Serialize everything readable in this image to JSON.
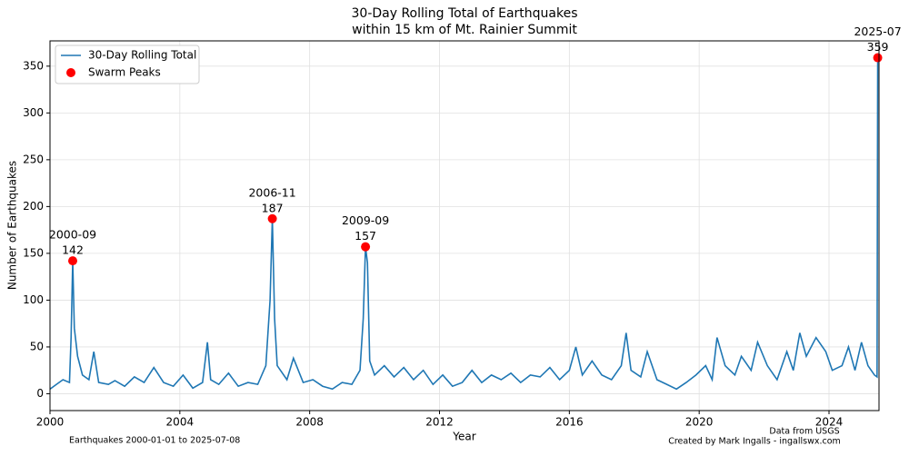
{
  "chart_data": {
    "type": "line",
    "title": "30-Day Rolling Total of Earthquakes",
    "subtitle": "within 15 km of Mt. Rainier Summit",
    "x_label": "Year",
    "y_label": "Number of Earthquakes",
    "footer_left": "Earthquakes 2000-01-01 to 2025-07-08",
    "footer_right": [
      "Data from USGS",
      "Created by Mark Ingalls - ingallswx.com"
    ],
    "xlim": [
      2000,
      2025.54
    ],
    "ylim": [
      -18,
      377
    ],
    "xticks": [
      2000,
      2004,
      2008,
      2012,
      2016,
      2020,
      2024
    ],
    "yticks": [
      0,
      50,
      100,
      150,
      200,
      250,
      300,
      350
    ],
    "grid": true,
    "legend": "upper left",
    "series": [
      {
        "name": "30-Day Rolling Total",
        "color": "#1f77b4",
        "x": [
          2000.0,
          2000.2,
          2000.4,
          2000.6,
          2000.65,
          2000.7,
          2000.75,
          2000.85,
          2001.0,
          2001.2,
          2001.35,
          2001.5,
          2001.8,
          2002.0,
          2002.3,
          2002.6,
          2002.9,
          2003.2,
          2003.5,
          2003.8,
          2004.1,
          2004.4,
          2004.7,
          2004.85,
          2004.95,
          2005.2,
          2005.5,
          2005.8,
          2006.1,
          2006.4,
          2006.65,
          2006.78,
          2006.85,
          2006.92,
          2007.0,
          2007.3,
          2007.5,
          2007.8,
          2008.1,
          2008.4,
          2008.7,
          2009.0,
          2009.3,
          2009.55,
          2009.65,
          2009.72,
          2009.78,
          2009.85,
          2010.0,
          2010.3,
          2010.6,
          2010.9,
          2011.2,
          2011.5,
          2011.8,
          2012.1,
          2012.4,
          2012.7,
          2013.0,
          2013.3,
          2013.6,
          2013.9,
          2014.2,
          2014.5,
          2014.8,
          2015.1,
          2015.4,
          2015.7,
          2016.0,
          2016.2,
          2016.4,
          2016.7,
          2017.0,
          2017.3,
          2017.6,
          2017.75,
          2017.9,
          2018.2,
          2018.4,
          2018.7,
          2019.0,
          2019.3,
          2019.6,
          2019.9,
          2020.2,
          2020.4,
          2020.55,
          2020.8,
          2021.1,
          2021.3,
          2021.6,
          2021.8,
          2022.1,
          2022.4,
          2022.7,
          2022.9,
          2023.1,
          2023.3,
          2023.6,
          2023.9,
          2024.1,
          2024.4,
          2024.6,
          2024.8,
          2025.0,
          2025.2,
          2025.4,
          2025.48,
          2025.5
        ],
        "values": [
          5,
          10,
          15,
          12,
          60,
          142,
          70,
          40,
          20,
          15,
          45,
          12,
          10,
          14,
          8,
          18,
          12,
          28,
          12,
          8,
          20,
          6,
          12,
          55,
          15,
          10,
          22,
          8,
          12,
          10,
          30,
          100,
          187,
          80,
          30,
          15,
          38,
          12,
          15,
          8,
          5,
          12,
          10,
          25,
          80,
          157,
          140,
          35,
          20,
          30,
          18,
          28,
          15,
          25,
          10,
          20,
          8,
          12,
          25,
          12,
          20,
          15,
          22,
          12,
          20,
          18,
          28,
          15,
          25,
          50,
          20,
          35,
          20,
          15,
          30,
          65,
          25,
          18,
          45,
          15,
          10,
          5,
          12,
          20,
          30,
          15,
          60,
          30,
          20,
          40,
          25,
          55,
          30,
          15,
          45,
          25,
          65,
          40,
          60,
          45,
          25,
          30,
          50,
          25,
          55,
          30,
          20,
          18,
          359
        ]
      },
      {
        "name": "Swarm Peaks",
        "type": "scatter",
        "color": "#ff0000",
        "x": [
          2000.7,
          2006.85,
          2009.72,
          2025.5
        ],
        "values": [
          142,
          187,
          157,
          359
        ],
        "date_labels": [
          "2000-09",
          "2006-11",
          "2009-09",
          "2025-07"
        ]
      }
    ]
  }
}
